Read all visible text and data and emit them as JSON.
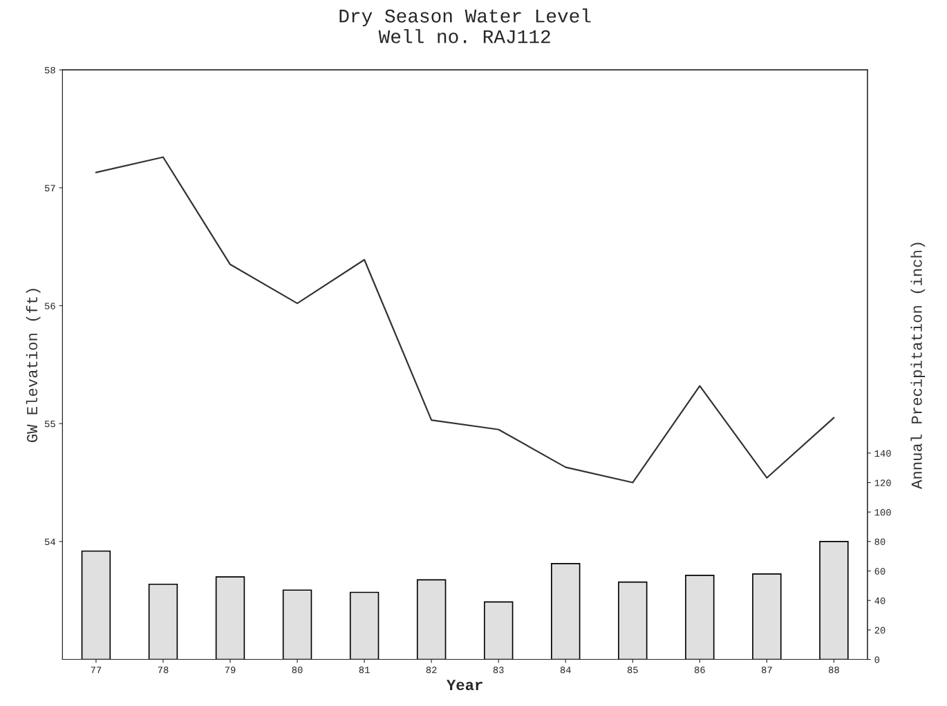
{
  "chart_data": {
    "type": "line",
    "title": "Dry Season Water Level\nWell no. RAJ112",
    "xlabel": "Year",
    "ylabel": "GW Elevation (ft)",
    "y2label": "Annual Precipitation (inch)",
    "categories": [
      "77",
      "78",
      "79",
      "80",
      "81",
      "82",
      "83",
      "84",
      "85",
      "86",
      "87",
      "88"
    ],
    "series": [
      {
        "color": "#333333",
        "values": [
          57.13,
          57.26,
          56.35,
          56.02,
          56.39,
          55.03,
          54.95,
          54.63,
          54.5,
          55.32,
          54.54,
          55.05
        ]
      },
      {
        "type": "bar",
        "axis": "y2",
        "color": "#e0e0e0",
        "values": [
          73.5,
          51,
          56,
          47,
          45.5,
          54,
          39,
          65,
          52.5,
          57,
          58,
          80
        ]
      }
    ],
    "ylim": [
      53,
      58
    ],
    "yticks": [
      54,
      55,
      56,
      57,
      58
    ],
    "y2lim": [
      0,
      400
    ],
    "y2ticks": [
      0,
      20,
      40,
      60,
      80,
      100,
      120,
      140
    ],
    "grid": false,
    "legend": false
  }
}
